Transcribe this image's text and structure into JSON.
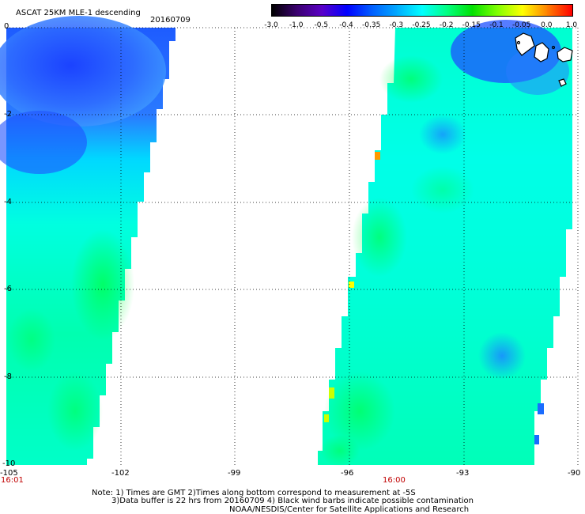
{
  "header": {
    "title": "ASCAT 25KM MLE-1 descending",
    "date": "20160709"
  },
  "colorbar": {
    "labels": [
      "-3.0",
      "-1.0",
      "-0.5",
      "-0.4",
      "-0.35",
      "-0.3",
      "-0.25",
      "-0.2",
      "-0.15",
      "-0.1",
      "-0.05",
      "0.0",
      "1.0"
    ],
    "colors": [
      "#000000",
      "#3b0070",
      "#5a00c8",
      "#0000ff",
      "#0060ff",
      "#00aaff",
      "#00ffff",
      "#00ff80",
      "#00e000",
      "#80ff00",
      "#ffff00",
      "#ff8000",
      "#ff0000"
    ]
  },
  "axes": {
    "y_ticks": [
      "0",
      "-2",
      "-4",
      "-6",
      "-8",
      "-10"
    ],
    "x_ticks": [
      "-105",
      "-102",
      "-99",
      "-96",
      "-93",
      "-90"
    ]
  },
  "time_labels": {
    "left": "16:01",
    "right": "16:00"
  },
  "notes": {
    "line1": "Note: 1) Times are GMT 2)Times along bottom correspond to measurement at -5S",
    "line2": "3)Data buffer is 22 hrs from 20160709 4) Black wind barbs indicate possible contamination",
    "line3": "NOAA/NESDIS/Center for Satellite Applications and Research"
  }
}
